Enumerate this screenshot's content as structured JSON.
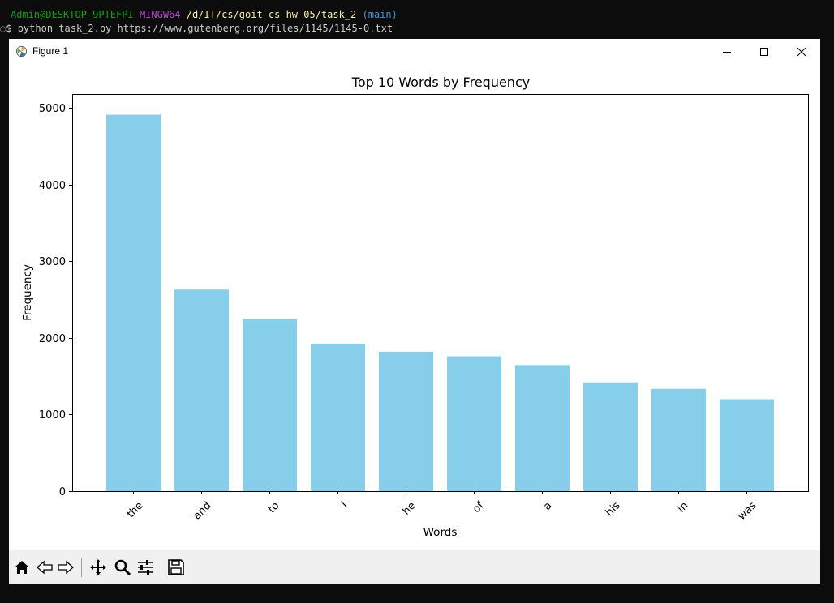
{
  "terminal": {
    "user_host": "Admin@DESKTOP-9PTEFPI",
    "shell": "MINGW64",
    "path": "/d/IT/cs/goit-cs-hw-05/task_2",
    "branch": "(main)",
    "prompt": "$",
    "command": "python task_2.py https://www.gutenberg.org/files/1145/1145-0.txt"
  },
  "window": {
    "title": "Figure 1"
  },
  "chart_data": {
    "type": "bar",
    "title": "Top 10 Words by Frequency",
    "xlabel": "Words",
    "ylabel": "Frequency",
    "categories": [
      "the",
      "and",
      "to",
      "i",
      "he",
      "of",
      "a",
      "his",
      "in",
      "was"
    ],
    "values": [
      4910,
      2630,
      2250,
      1925,
      1820,
      1760,
      1645,
      1420,
      1335,
      1200
    ],
    "ylim": [
      0,
      5180
    ],
    "yticks": [
      0,
      1000,
      2000,
      3000,
      4000,
      5000
    ],
    "bar_color": "#87ceeb",
    "grid": false
  },
  "toolbar": {
    "buttons": [
      "home-icon",
      "back-icon",
      "forward-icon",
      "pan-icon",
      "zoom-icon",
      "configure-subplots-icon",
      "save-icon"
    ]
  }
}
